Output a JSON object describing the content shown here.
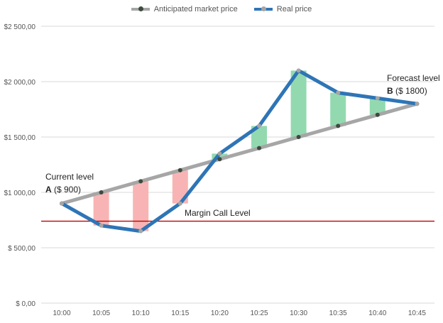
{
  "chart_data": {
    "type": "line",
    "categories": [
      "10:00",
      "10:05",
      "10:10",
      "10:15",
      "10:20",
      "10:25",
      "10:30",
      "10:35",
      "10:40",
      "10:45"
    ],
    "series": [
      {
        "name": "Anticipated market price",
        "values": [
          900,
          1000,
          1100,
          1200,
          1300,
          1400,
          1500,
          1600,
          1700,
          1800
        ],
        "color": "#a6a6a6",
        "marker_color": "#3d4a3d"
      },
      {
        "name": "Real price",
        "values": [
          900,
          700,
          650,
          900,
          1350,
          1600,
          2100,
          1900,
          1850,
          1800
        ],
        "color": "#2e75b6",
        "marker_color": "#a6a6a6"
      }
    ],
    "ylim": [
      0,
      2500
    ],
    "yticks": [
      0,
      500,
      1000,
      1500,
      2000,
      2500
    ],
    "ytick_labels": [
      "$ 0,00",
      "$ 500,00",
      "$1 000,00",
      "$1 500,00",
      "$2 000,00",
      "$2 500,00"
    ],
    "grid": true,
    "legend_position": "top",
    "margin_call": {
      "value": 740,
      "label": "Margin Call Level",
      "color": "#c00000"
    },
    "fill_colors": {
      "loss": "#f8b4b4",
      "gain": "#93d9b0"
    },
    "annotations": {
      "current": {
        "line1": "Current level",
        "bold": "A",
        "rest": " ($ 900)"
      },
      "forecast": {
        "line1": "Forecast level",
        "bold": "B",
        "rest": " ($ 1800)"
      }
    }
  }
}
